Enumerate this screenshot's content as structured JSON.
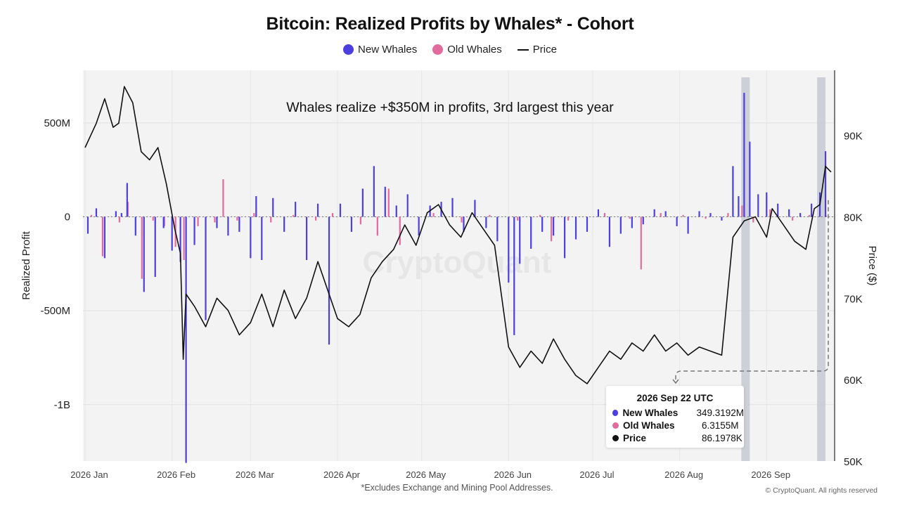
{
  "chart_data": {
    "type": "bar",
    "title": "Bitcoin: Realized Profits by Whales* - Cohort",
    "legend": [
      {
        "label": "New Whales",
        "color": "#4b3fe0",
        "kind": "dot"
      },
      {
        "label": "Old Whales",
        "color": "#e06b9c",
        "kind": "dot"
      },
      {
        "label": "Price",
        "color": "#111111",
        "kind": "line"
      }
    ],
    "annotation": "Whales realize +$350M in profits, 3rd largest this year",
    "ylabel_left": "Realized Profit",
    "ylabel_right": "Price ($)",
    "ylim_left": [
      -1300000000,
      780000000
    ],
    "ylim_right": [
      50000,
      98000
    ],
    "left_ticks": [
      {
        "value": 500000000,
        "label": "500M"
      },
      {
        "value": 0,
        "label": "0"
      },
      {
        "value": -500000000,
        "label": "-500M"
      },
      {
        "value": -1000000000,
        "label": "-1B"
      }
    ],
    "right_ticks": [
      {
        "value": 90000,
        "label": "90K"
      },
      {
        "value": 80000,
        "label": "80K"
      },
      {
        "value": 70000,
        "label": "70K"
      },
      {
        "value": 60000,
        "label": "60K"
      },
      {
        "value": 50000,
        "label": "50K"
      }
    ],
    "x_ticks": [
      {
        "date": "2026-01-01",
        "label": "2026 Jan"
      },
      {
        "date": "2026-02-01",
        "label": "2026 Feb"
      },
      {
        "date": "2026-03-01",
        "label": "2026 Mar"
      },
      {
        "date": "2026-04-01",
        "label": "2026 Apr"
      },
      {
        "date": "2026-05-01",
        "label": "2026 May"
      },
      {
        "date": "2026-06-01",
        "label": "2026 Jun"
      },
      {
        "date": "2026-07-01",
        "label": "2026 Jul"
      },
      {
        "date": "2026-08-01",
        "label": "2026 Aug"
      },
      {
        "date": "2026-09-01",
        "label": "2026 Sep"
      }
    ],
    "x_range": [
      "2026-01-01",
      "2026-09-25"
    ],
    "highlight_ranges": [
      [
        "2026-08-23",
        "2026-08-26"
      ],
      [
        "2026-09-19",
        "2026-09-22"
      ]
    ],
    "grid": true,
    "watermark": "CryptoQuant",
    "price_series": [
      {
        "x": "2026-01-01",
        "y": 88500
      },
      {
        "x": "2026-01-05",
        "y": 91500
      },
      {
        "x": "2026-01-08",
        "y": 94500
      },
      {
        "x": "2026-01-11",
        "y": 91000
      },
      {
        "x": "2026-01-13",
        "y": 91500
      },
      {
        "x": "2026-01-15",
        "y": 96000
      },
      {
        "x": "2026-01-18",
        "y": 94000
      },
      {
        "x": "2026-01-21",
        "y": 88000
      },
      {
        "x": "2026-01-24",
        "y": 87000
      },
      {
        "x": "2026-01-27",
        "y": 88500
      },
      {
        "x": "2026-01-30",
        "y": 84000
      },
      {
        "x": "2026-02-02",
        "y": 78500
      },
      {
        "x": "2026-02-04",
        "y": 75500
      },
      {
        "x": "2026-02-05",
        "y": 62500
      },
      {
        "x": "2026-02-06",
        "y": 70500
      },
      {
        "x": "2026-02-09",
        "y": 69000
      },
      {
        "x": "2026-02-13",
        "y": 66500
      },
      {
        "x": "2026-02-17",
        "y": 70000
      },
      {
        "x": "2026-02-21",
        "y": 68500
      },
      {
        "x": "2026-02-25",
        "y": 65500
      },
      {
        "x": "2026-03-01",
        "y": 67000
      },
      {
        "x": "2026-03-05",
        "y": 70500
      },
      {
        "x": "2026-03-09",
        "y": 66500
      },
      {
        "x": "2026-03-13",
        "y": 71000
      },
      {
        "x": "2026-03-17",
        "y": 67500
      },
      {
        "x": "2026-03-21",
        "y": 70000
      },
      {
        "x": "2026-03-25",
        "y": 74500
      },
      {
        "x": "2026-03-29",
        "y": 70500
      },
      {
        "x": "2026-04-01",
        "y": 67500
      },
      {
        "x": "2026-04-05",
        "y": 66500
      },
      {
        "x": "2026-04-09",
        "y": 68000
      },
      {
        "x": "2026-04-13",
        "y": 72500
      },
      {
        "x": "2026-04-17",
        "y": 74500
      },
      {
        "x": "2026-04-21",
        "y": 76000
      },
      {
        "x": "2026-04-25",
        "y": 79000
      },
      {
        "x": "2026-04-29",
        "y": 76500
      },
      {
        "x": "2026-05-03",
        "y": 80500
      },
      {
        "x": "2026-05-07",
        "y": 81500
      },
      {
        "x": "2026-05-11",
        "y": 79000
      },
      {
        "x": "2026-05-15",
        "y": 77500
      },
      {
        "x": "2026-05-19",
        "y": 80500
      },
      {
        "x": "2026-05-23",
        "y": 78500
      },
      {
        "x": "2026-05-27",
        "y": 76500
      },
      {
        "x": "2026-06-01",
        "y": 64000
      },
      {
        "x": "2026-06-05",
        "y": 61500
      },
      {
        "x": "2026-06-09",
        "y": 63500
      },
      {
        "x": "2026-06-13",
        "y": 62000
      },
      {
        "x": "2026-06-17",
        "y": 65000
      },
      {
        "x": "2026-06-21",
        "y": 62500
      },
      {
        "x": "2026-06-25",
        "y": 60500
      },
      {
        "x": "2026-06-29",
        "y": 59500
      },
      {
        "x": "2026-07-03",
        "y": 61500
      },
      {
        "x": "2026-07-07",
        "y": 63500
      },
      {
        "x": "2026-07-11",
        "y": 62500
      },
      {
        "x": "2026-07-15",
        "y": 64500
      },
      {
        "x": "2026-07-19",
        "y": 63500
      },
      {
        "x": "2026-07-23",
        "y": 65500
      },
      {
        "x": "2026-07-27",
        "y": 63500
      },
      {
        "x": "2026-07-31",
        "y": 64500
      },
      {
        "x": "2026-08-04",
        "y": 63000
      },
      {
        "x": "2026-08-08",
        "y": 64000
      },
      {
        "x": "2026-08-12",
        "y": 63500
      },
      {
        "x": "2026-08-16",
        "y": 63000
      },
      {
        "x": "2026-08-20",
        "y": 77500
      },
      {
        "x": "2026-08-24",
        "y": 79500
      },
      {
        "x": "2026-08-28",
        "y": 80000
      },
      {
        "x": "2026-09-01",
        "y": 77500
      },
      {
        "x": "2026-09-03",
        "y": 81000
      },
      {
        "x": "2026-09-07",
        "y": 79000
      },
      {
        "x": "2026-09-11",
        "y": 77000
      },
      {
        "x": "2026-09-15",
        "y": 76000
      },
      {
        "x": "2026-09-18",
        "y": 81000
      },
      {
        "x": "2026-09-20",
        "y": 81500
      },
      {
        "x": "2026-09-22",
        "y": 86198
      },
      {
        "x": "2026-09-24",
        "y": 85500
      }
    ],
    "new_whales_series": [
      {
        "x": "2026-01-02",
        "y": -90000000
      },
      {
        "x": "2026-01-05",
        "y": 45000000
      },
      {
        "x": "2026-01-08",
        "y": -220000000
      },
      {
        "x": "2026-01-12",
        "y": 30000000
      },
      {
        "x": "2026-01-14",
        "y": 20000000
      },
      {
        "x": "2026-01-16",
        "y": 180000000
      },
      {
        "x": "2026-01-19",
        "y": -100000000
      },
      {
        "x": "2026-01-22",
        "y": -400000000
      },
      {
        "x": "2026-01-26",
        "y": -320000000
      },
      {
        "x": "2026-01-29",
        "y": -60000000
      },
      {
        "x": "2026-02-01",
        "y": -180000000
      },
      {
        "x": "2026-02-04",
        "y": -240000000
      },
      {
        "x": "2026-02-06",
        "y": -1310000000
      },
      {
        "x": "2026-02-09",
        "y": -150000000
      },
      {
        "x": "2026-02-13",
        "y": -550000000
      },
      {
        "x": "2026-02-17",
        "y": -60000000
      },
      {
        "x": "2026-02-21",
        "y": -100000000
      },
      {
        "x": "2026-02-25",
        "y": -80000000
      },
      {
        "x": "2026-03-01",
        "y": -220000000
      },
      {
        "x": "2026-03-03",
        "y": 110000000
      },
      {
        "x": "2026-03-05",
        "y": -230000000
      },
      {
        "x": "2026-03-09",
        "y": 100000000
      },
      {
        "x": "2026-03-13",
        "y": -80000000
      },
      {
        "x": "2026-03-17",
        "y": 80000000
      },
      {
        "x": "2026-03-21",
        "y": -230000000
      },
      {
        "x": "2026-03-25",
        "y": 70000000
      },
      {
        "x": "2026-03-29",
        "y": -680000000
      },
      {
        "x": "2026-04-02",
        "y": 70000000
      },
      {
        "x": "2026-04-06",
        "y": -80000000
      },
      {
        "x": "2026-04-10",
        "y": 150000000
      },
      {
        "x": "2026-04-14",
        "y": 270000000
      },
      {
        "x": "2026-04-18",
        "y": 160000000
      },
      {
        "x": "2026-04-22",
        "y": 60000000
      },
      {
        "x": "2026-04-26",
        "y": 120000000
      },
      {
        "x": "2026-04-30",
        "y": -100000000
      },
      {
        "x": "2026-05-04",
        "y": 60000000
      },
      {
        "x": "2026-05-08",
        "y": 80000000
      },
      {
        "x": "2026-05-12",
        "y": 100000000
      },
      {
        "x": "2026-05-16",
        "y": -80000000
      },
      {
        "x": "2026-05-20",
        "y": 90000000
      },
      {
        "x": "2026-05-24",
        "y": -60000000
      },
      {
        "x": "2026-05-28",
        "y": -130000000
      },
      {
        "x": "2026-06-01",
        "y": -350000000
      },
      {
        "x": "2026-06-03",
        "y": -630000000
      },
      {
        "x": "2026-06-05",
        "y": -250000000
      },
      {
        "x": "2026-06-09",
        "y": -170000000
      },
      {
        "x": "2026-06-13",
        "y": -80000000
      },
      {
        "x": "2026-06-17",
        "y": -100000000
      },
      {
        "x": "2026-06-21",
        "y": -220000000
      },
      {
        "x": "2026-06-25",
        "y": -120000000
      },
      {
        "x": "2026-06-29",
        "y": -80000000
      },
      {
        "x": "2026-07-03",
        "y": 40000000
      },
      {
        "x": "2026-07-07",
        "y": -160000000
      },
      {
        "x": "2026-07-11",
        "y": -90000000
      },
      {
        "x": "2026-07-15",
        "y": -60000000
      },
      {
        "x": "2026-07-19",
        "y": -40000000
      },
      {
        "x": "2026-07-23",
        "y": 40000000
      },
      {
        "x": "2026-07-27",
        "y": 30000000
      },
      {
        "x": "2026-07-31",
        "y": -50000000
      },
      {
        "x": "2026-08-04",
        "y": -90000000
      },
      {
        "x": "2026-08-08",
        "y": 30000000
      },
      {
        "x": "2026-08-12",
        "y": 20000000
      },
      {
        "x": "2026-08-16",
        "y": -20000000
      },
      {
        "x": "2026-08-20",
        "y": 270000000
      },
      {
        "x": "2026-08-22",
        "y": 110000000
      },
      {
        "x": "2026-08-24",
        "y": 660000000
      },
      {
        "x": "2026-08-26",
        "y": 400000000
      },
      {
        "x": "2026-08-29",
        "y": 120000000
      },
      {
        "x": "2026-09-01",
        "y": 130000000
      },
      {
        "x": "2026-09-05",
        "y": 70000000
      },
      {
        "x": "2026-09-09",
        "y": 40000000
      },
      {
        "x": "2026-09-13",
        "y": 20000000
      },
      {
        "x": "2026-09-17",
        "y": 70000000
      },
      {
        "x": "2026-09-20",
        "y": 130000000
      },
      {
        "x": "2026-09-22",
        "y": 349319200
      }
    ],
    "old_whales_series": [
      {
        "x": "2026-01-03",
        "y": 10000000
      },
      {
        "x": "2026-01-07",
        "y": -210000000
      },
      {
        "x": "2026-01-13",
        "y": -30000000
      },
      {
        "x": "2026-01-16",
        "y": 80000000
      },
      {
        "x": "2026-01-21",
        "y": -330000000
      },
      {
        "x": "2026-01-25",
        "y": -20000000
      },
      {
        "x": "2026-01-29",
        "y": -50000000
      },
      {
        "x": "2026-02-02",
        "y": -160000000
      },
      {
        "x": "2026-02-05",
        "y": -230000000
      },
      {
        "x": "2026-02-10",
        "y": -50000000
      },
      {
        "x": "2026-02-16",
        "y": -30000000
      },
      {
        "x": "2026-02-19",
        "y": 200000000
      },
      {
        "x": "2026-02-24",
        "y": -20000000
      },
      {
        "x": "2026-03-02",
        "y": 20000000
      },
      {
        "x": "2026-03-08",
        "y": -30000000
      },
      {
        "x": "2026-03-16",
        "y": 10000000
      },
      {
        "x": "2026-03-24",
        "y": -20000000
      },
      {
        "x": "2026-03-30",
        "y": 20000000
      },
      {
        "x": "2026-04-09",
        "y": -40000000
      },
      {
        "x": "2026-04-15",
        "y": -100000000
      },
      {
        "x": "2026-04-19",
        "y": 150000000
      },
      {
        "x": "2026-04-23",
        "y": -150000000
      },
      {
        "x": "2026-05-05",
        "y": 20000000
      },
      {
        "x": "2026-05-15",
        "y": -30000000
      },
      {
        "x": "2026-05-25",
        "y": 10000000
      },
      {
        "x": "2026-06-04",
        "y": -20000000
      },
      {
        "x": "2026-06-12",
        "y": 10000000
      },
      {
        "x": "2026-06-16",
        "y": -130000000
      },
      {
        "x": "2026-06-22",
        "y": -20000000
      },
      {
        "x": "2026-07-05",
        "y": 20000000
      },
      {
        "x": "2026-07-14",
        "y": -10000000
      },
      {
        "x": "2026-07-18",
        "y": -280000000
      },
      {
        "x": "2026-07-25",
        "y": 20000000
      },
      {
        "x": "2026-08-02",
        "y": 10000000
      },
      {
        "x": "2026-08-10",
        "y": -10000000
      },
      {
        "x": "2026-08-18",
        "y": 20000000
      },
      {
        "x": "2026-08-23",
        "y": 60000000
      },
      {
        "x": "2026-08-27",
        "y": -30000000
      },
      {
        "x": "2026-09-02",
        "y": 40000000
      },
      {
        "x": "2026-09-10",
        "y": -20000000
      },
      {
        "x": "2026-09-16",
        "y": 10000000
      },
      {
        "x": "2026-09-22",
        "y": 6315500
      }
    ]
  },
  "tooltip": {
    "date": "2026 Sep 22 UTC",
    "rows": [
      {
        "label": "New Whales",
        "value": "349.3192M",
        "color": "#4b3fe0"
      },
      {
        "label": "Old Whales",
        "value": "6.3155M",
        "color": "#e06b9c"
      },
      {
        "label": "Price",
        "value": "86.1978K",
        "color": "#111111"
      }
    ]
  },
  "footnote": "*Excludes Exchange and Mining Pool Addresses.",
  "copyright": "© CryptoQuant. All rights reserved"
}
